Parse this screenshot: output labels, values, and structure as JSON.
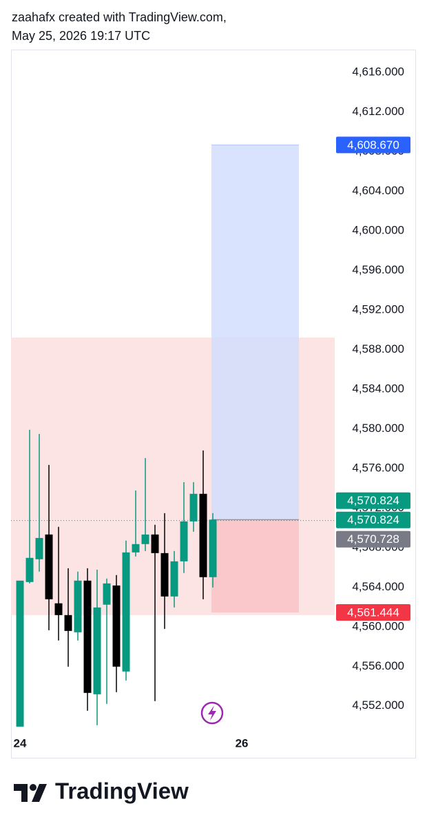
{
  "header": {
    "line1": "zaahafx created with TradingView.com,",
    "line2": "May 25, 2026 19:17 UTC"
  },
  "footer": {
    "brand": "TradingView"
  },
  "chart_data": {
    "type": "candlestick",
    "x": [
      0,
      1,
      2,
      3,
      4,
      5,
      6,
      7,
      8,
      9,
      10,
      11,
      12,
      13,
      14,
      15,
      16,
      17,
      18,
      19,
      20
    ],
    "xlim": [
      -0.93,
      32.64
    ],
    "xticks": [
      {
        "value": 0,
        "label": "24"
      },
      {
        "value": 23,
        "label": "26"
      }
    ],
    "open": [
      4549.91,
      4564.52,
      4566.82,
      4569.32,
      4562.37,
      4561.18,
      4559.44,
      4564.66,
      4553.18,
      4562.23,
      4564.17,
      4555.48,
      4567.51,
      4568.35,
      4569.32,
      4567.44,
      4563.06,
      4566.61,
      4570.64,
      4573.43,
      4565.01
    ],
    "high": [
      4564.66,
      4579.9,
      4579.48,
      4576.35,
      4570.09,
      4565.91,
      4565.57,
      4565.91,
      4565.77,
      4564.87,
      4565.22,
      4568.7,
      4573.77,
      4577.04,
      4570.3,
      4571.48,
      4567.65,
      4574.61,
      4574.61,
      4577.81,
      4571.48
    ],
    "low": [
      4549.91,
      4564.38,
      4565.57,
      4559.65,
      4558.61,
      4555.97,
      4558.61,
      4551.51,
      4550.05,
      4552.21,
      4553.39,
      4554.57,
      4567.1,
      4567.65,
      4552.49,
      4559.79,
      4561.95,
      4565.43,
      4569.6,
      4562.78,
      4563.97
    ],
    "close": [
      4564.66,
      4566.96,
      4568.97,
      4562.78,
      4561.18,
      4559.58,
      4564.66,
      4553.32,
      4561.95,
      4564.38,
      4555.97,
      4567.51,
      4568.35,
      4569.32,
      4567.44,
      4563.06,
      4566.61,
      4570.64,
      4573.43,
      4565.01,
      4570.82
    ],
    "up_color": "#089981",
    "down_color": "#000000",
    "ylim": [
      4549.2,
      4618.3
    ],
    "yticks": [
      {
        "value": 4552,
        "label": "4,552.000"
      },
      {
        "value": 4556,
        "label": "4,556.000"
      },
      {
        "value": 4560,
        "label": "4,560.000"
      },
      {
        "value": 4564,
        "label": "4,564.000"
      },
      {
        "value": 4568,
        "label": "4,568.000"
      },
      {
        "value": 4572,
        "label": "4,572.000"
      },
      {
        "value": 4576,
        "label": "4,576.000"
      },
      {
        "value": 4580,
        "label": "4,580.000"
      },
      {
        "value": 4584,
        "label": "4,584.000"
      },
      {
        "value": 4588,
        "label": "4,588.000"
      },
      {
        "value": 4592,
        "label": "4,592.000"
      },
      {
        "value": 4596,
        "label": "4,596.000"
      },
      {
        "value": 4600,
        "label": "4,600.000"
      },
      {
        "value": 4604,
        "label": "4,604.000"
      },
      {
        "value": 4608,
        "label": "4,608.000"
      },
      {
        "value": 4612,
        "label": "4,612.000"
      },
      {
        "value": 4616,
        "label": "4,616.000"
      }
    ],
    "rectangle": {
      "top": 4589.22,
      "bottom": 4561.18,
      "color": "#fde4e4"
    },
    "position": {
      "target": 4608.67,
      "entry": 4570.824,
      "stop": 4561.444,
      "target_color": "#d2defd",
      "stop_color": "#f9c2c6"
    },
    "last_price": 4570.728,
    "price_labels": [
      {
        "value": 4608.67,
        "label": "4,608.670",
        "color": "#2962ff"
      },
      {
        "value": 4570.824,
        "label": "4,570.824",
        "color": "#089981"
      },
      {
        "value": 4570.824,
        "label": "4,570.824",
        "color": "#089981"
      },
      {
        "value": 4570.728,
        "label": "4,570.728",
        "color": "#787b86"
      },
      {
        "value": 4561.444,
        "label": "4,561.444",
        "color": "#f23645"
      }
    ]
  }
}
